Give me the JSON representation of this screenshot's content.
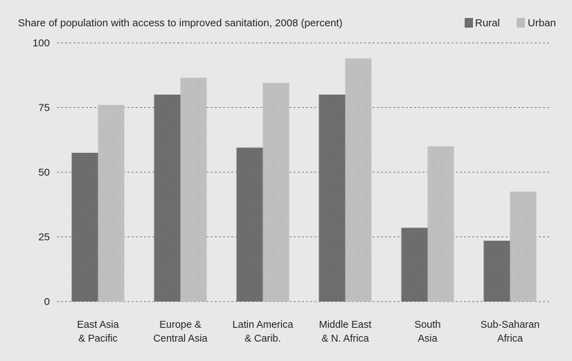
{
  "chart_data": {
    "type": "bar",
    "title": "Share of population with access to improved sanitation, 2008 (percent)",
    "xlabel": "",
    "ylabel": "",
    "ylim": [
      0,
      100
    ],
    "yticks": [
      "0",
      "25",
      "50",
      "75",
      "100"
    ],
    "grid": true,
    "legend_position": "top-right",
    "categories": [
      [
        "East Asia",
        "& Pacific"
      ],
      [
        "Europe &",
        "Central Asia"
      ],
      [
        "Latin America",
        "& Carib."
      ],
      [
        "Middle East",
        "& N. Africa"
      ],
      [
        "South",
        "Asia"
      ],
      [
        "Sub-Saharan",
        "Africa"
      ]
    ],
    "series": [
      {
        "name": "Rural",
        "color": "#6e6e6e",
        "values": [
          57.5,
          80,
          59.5,
          80,
          28.5,
          23.5
        ]
      },
      {
        "name": "Urban",
        "color": "#bdbdbd",
        "values": [
          76,
          86.5,
          84.5,
          94,
          60,
          42.5
        ]
      }
    ]
  }
}
